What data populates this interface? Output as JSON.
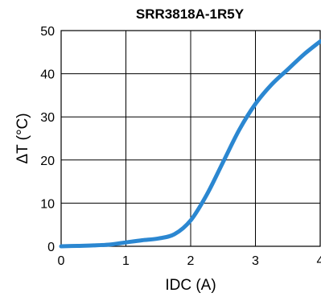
{
  "chart_data": {
    "type": "line",
    "title": "SRR3818A-1R5Y",
    "xlabel": "IDC (A)",
    "ylabel": "ΔT (°C)",
    "xlim": [
      0,
      4
    ],
    "ylim": [
      0,
      50
    ],
    "x_ticks": [
      "0",
      "1",
      "2",
      "3",
      "4"
    ],
    "y_ticks": [
      "0",
      "10",
      "20",
      "30",
      "40",
      "50"
    ],
    "grid": true,
    "series": [
      {
        "color": "#2b87d1",
        "x": [
          0,
          0.25,
          0.5,
          0.75,
          1.0,
          1.25,
          1.5,
          1.75,
          2.0,
          2.25,
          2.5,
          2.75,
          3.0,
          3.25,
          3.5,
          3.75,
          4.0
        ],
        "y": [
          0,
          0.1,
          0.2,
          0.4,
          0.9,
          1.4,
          1.8,
          2.8,
          6.0,
          12.0,
          19.5,
          27.0,
          33.0,
          37.5,
          41.0,
          44.5,
          47.5
        ]
      }
    ]
  }
}
